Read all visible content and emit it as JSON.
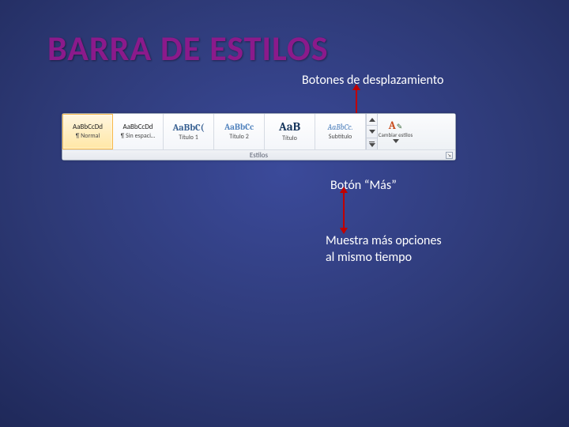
{
  "title": "BARRA DE ESTILOS",
  "annotations": {
    "scroll": "Botones de desplazamiento",
    "more": "Botón “Más”",
    "moreDesc": "Muestra más opciones\nal mismo tiempo"
  },
  "gallery": {
    "groupLabel": "Estilos",
    "changeStyles": {
      "label": "Cambiar estilos",
      "preview": "A"
    },
    "tiles": [
      {
        "preview": "AaBbCcDd",
        "caption": "¶ Normal",
        "color": "#222222",
        "font": "Calibri",
        "size": 9,
        "bold": false,
        "selected": true,
        "italic": false
      },
      {
        "preview": "AaBbCcDd",
        "caption": "¶ Sin espaci…",
        "color": "#222222",
        "font": "Calibri",
        "size": 9,
        "bold": false,
        "selected": false,
        "italic": false
      },
      {
        "preview": "AaBbC(",
        "caption": "Título 1",
        "color": "#365f91",
        "font": "Cambria",
        "size": 12,
        "bold": true,
        "selected": false,
        "italic": false
      },
      {
        "preview": "AaBbCc",
        "caption": "Título 2",
        "color": "#4f81bd",
        "font": "Cambria",
        "size": 11,
        "bold": true,
        "selected": false,
        "italic": false
      },
      {
        "preview": "AaB",
        "caption": "Título",
        "color": "#17365d",
        "font": "Cambria",
        "size": 15,
        "bold": true,
        "selected": false,
        "italic": false
      },
      {
        "preview": "AaBbCc.",
        "caption": "Subtítulo",
        "color": "#4f81bd",
        "font": "Cambria",
        "size": 10,
        "bold": false,
        "selected": false,
        "italic": true
      }
    ]
  },
  "colors": {
    "titleColor": "#8b1a8b",
    "arrowColor": "#c00000",
    "annotationColor": "#ffffff",
    "galleryBorder": "#9aa5b6"
  }
}
